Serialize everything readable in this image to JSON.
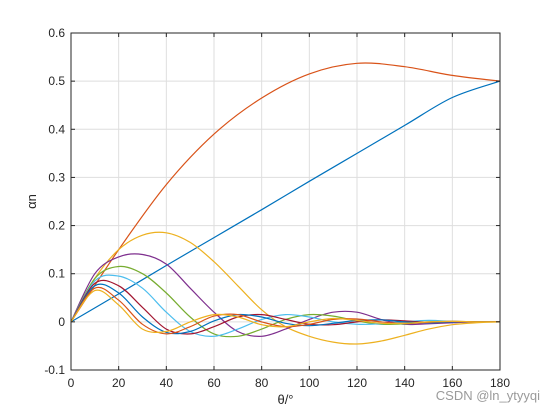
{
  "chart_data": {
    "type": "line",
    "xlabel": "θ/°",
    "ylabel": "αn",
    "xlim": [
      0,
      180
    ],
    "ylim": [
      -0.1,
      0.6
    ],
    "xticks": [
      0,
      20,
      40,
      60,
      80,
      100,
      120,
      140,
      160,
      180
    ],
    "yticks": [
      -0.1,
      0,
      0.1,
      0.2,
      0.3,
      0.4,
      0.5,
      0.6
    ],
    "grid": true,
    "series": [
      {
        "color": "#0072BD",
        "x": [
          0,
          20,
          40,
          60,
          80,
          100,
          120,
          140,
          160,
          180
        ],
        "y": [
          0,
          0.058,
          0.117,
          0.175,
          0.233,
          0.292,
          0.35,
          0.408,
          0.466,
          0.5
        ]
      },
      {
        "color": "#D95319",
        "x": [
          0,
          20,
          40,
          60,
          80,
          100,
          120,
          140,
          160,
          180
        ],
        "y": [
          0,
          0.15,
          0.285,
          0.39,
          0.465,
          0.515,
          0.537,
          0.53,
          0.512,
          0.5
        ]
      },
      {
        "color": "#EDB120",
        "x": [
          0,
          10,
          20,
          30,
          40,
          50,
          60,
          70,
          80,
          90,
          100,
          110,
          120,
          130,
          140,
          150,
          160,
          170,
          180
        ],
        "y": [
          0,
          0.09,
          0.15,
          0.18,
          0.185,
          0.165,
          0.125,
          0.075,
          0.025,
          -0.01,
          -0.03,
          -0.042,
          -0.046,
          -0.04,
          -0.028,
          -0.015,
          -0.006,
          -0.002,
          0
        ]
      },
      {
        "color": "#7E2F8E",
        "x": [
          0,
          10,
          20,
          30,
          40,
          50,
          60,
          70,
          80,
          90,
          100,
          110,
          120,
          130,
          140,
          150,
          160,
          170,
          180
        ],
        "y": [
          0,
          0.1,
          0.135,
          0.14,
          0.12,
          0.07,
          0.02,
          -0.02,
          -0.03,
          -0.015,
          0.005,
          0.02,
          0.02,
          0.005,
          -0.005,
          -0.004,
          -0.002,
          0,
          0
        ]
      },
      {
        "color": "#77AC30",
        "x": [
          0,
          10,
          20,
          30,
          40,
          50,
          60,
          70,
          80,
          90,
          100,
          110,
          120,
          130,
          140,
          150,
          160,
          170,
          180
        ],
        "y": [
          0,
          0.09,
          0.115,
          0.1,
          0.06,
          0.01,
          -0.025,
          -0.03,
          -0.015,
          0.005,
          0.015,
          0.012,
          0.002,
          -0.005,
          -0.004,
          0,
          0.001,
          0,
          0
        ]
      },
      {
        "color": "#4DBEEE",
        "x": [
          0,
          10,
          20,
          30,
          40,
          50,
          60,
          70,
          80,
          90,
          100,
          110,
          120,
          130,
          140,
          150,
          160,
          170,
          180
        ],
        "y": [
          0,
          0.085,
          0.095,
          0.07,
          0.02,
          -0.02,
          -0.03,
          -0.015,
          0.005,
          0.015,
          0.01,
          0,
          -0.005,
          -0.004,
          0,
          0.003,
          0.001,
          0,
          0
        ]
      },
      {
        "color": "#A2142F",
        "x": [
          0,
          10,
          20,
          30,
          40,
          50,
          60,
          70,
          80,
          90,
          100,
          110,
          120,
          130,
          140,
          150,
          160,
          170,
          180
        ],
        "y": [
          0,
          0.08,
          0.075,
          0.03,
          -0.015,
          -0.025,
          -0.01,
          0.01,
          0.015,
          0.005,
          -0.005,
          -0.006,
          0,
          0.004,
          0.002,
          -0.001,
          0,
          0,
          0
        ]
      },
      {
        "color": "#0072BD",
        "x": [
          0,
          10,
          20,
          30,
          40,
          50,
          60,
          70,
          80,
          90,
          100,
          110,
          120,
          130,
          140,
          150,
          160,
          170,
          180
        ],
        "y": [
          0,
          0.075,
          0.06,
          0.01,
          -0.022,
          -0.02,
          0.002,
          0.015,
          0.01,
          -0.003,
          -0.008,
          -0.003,
          0.003,
          0.004,
          0,
          -0.002,
          0,
          0,
          0
        ]
      },
      {
        "color": "#D95319",
        "x": [
          0,
          10,
          20,
          30,
          40,
          50,
          60,
          70,
          80,
          90,
          100,
          110,
          120,
          130,
          140,
          150,
          160,
          170,
          180
        ],
        "y": [
          0,
          0.07,
          0.045,
          -0.005,
          -0.025,
          -0.01,
          0.012,
          0.015,
          0.0,
          -0.01,
          -0.005,
          0.005,
          0.006,
          0,
          -0.003,
          -0.001,
          0.001,
          0,
          0
        ]
      },
      {
        "color": "#EDB120",
        "x": [
          0,
          10,
          20,
          30,
          40,
          50,
          60,
          70,
          80,
          90,
          100,
          110,
          120,
          130,
          140,
          150,
          160,
          170,
          180
        ],
        "y": [
          0,
          0.065,
          0.035,
          -0.015,
          -0.02,
          0.0,
          0.015,
          0.01,
          -0.006,
          -0.01,
          0.0,
          0.007,
          0.003,
          -0.003,
          -0.003,
          0,
          0.001,
          0,
          0
        ]
      }
    ]
  },
  "watermark": "CSDN @ln_ytyyqi"
}
